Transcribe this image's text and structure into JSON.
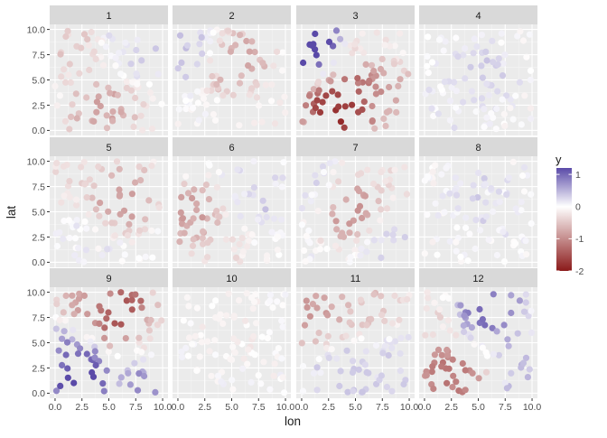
{
  "chart_data": {
    "type": "scatter",
    "facet": "month",
    "panels": [
      "1",
      "2",
      "3",
      "4",
      "5",
      "6",
      "7",
      "8",
      "9",
      "10",
      "11",
      "12"
    ],
    "xlabel": "lon",
    "ylabel": "lat",
    "xlim": [
      0,
      10
    ],
    "ylim": [
      0,
      10
    ],
    "xticks": [
      0,
      2.5,
      5,
      7.5,
      10
    ],
    "xtick_labels": [
      "0.0",
      "2.5",
      "5.0",
      "7.5",
      "10.0"
    ],
    "yticks": [
      0,
      2.5,
      5,
      7.5,
      10
    ],
    "ytick_labels": [
      "0.0",
      "2.5",
      "5.0",
      "7.5",
      "10.0"
    ],
    "legend": {
      "title": "y",
      "position": "right",
      "range": [
        -2,
        1.2
      ],
      "ticks": [
        1,
        0,
        -1,
        -2
      ],
      "tick_labels": [
        "1",
        "0",
        "-1",
        "-2"
      ],
      "colors": {
        "low": "#8b1a1a",
        "mid": "#ffffff",
        "high": "#5a4aa8"
      }
    },
    "points_per_panel": 100,
    "panel_fields": {
      "1": [
        [
          0.9,
          8.3,
          -0.55
        ],
        [
          4.5,
          2.0,
          -0.9
        ],
        [
          8.0,
          8.0,
          0.3
        ]
      ],
      "2": [
        [
          0.7,
          8.0,
          0.5
        ],
        [
          5.5,
          6.8,
          -0.9
        ],
        [
          9.0,
          2.0,
          -0.2
        ]
      ],
      "3": [
        [
          0.8,
          8.2,
          1.6
        ],
        [
          3.5,
          2.0,
          -2.1
        ],
        [
          5.5,
          4.8,
          -1.5
        ],
        [
          8.5,
          3.5,
          -0.8
        ],
        [
          6.5,
          8.2,
          -0.1
        ]
      ],
      "4": [
        [
          5.0,
          5.5,
          0.35
        ],
        [
          1.5,
          1.5,
          0.1
        ]
      ],
      "5": [
        [
          6.0,
          6.5,
          -1.0
        ],
        [
          0.5,
          8.5,
          -0.3
        ],
        [
          2.5,
          1.5,
          0.1
        ]
      ],
      "6": [
        [
          1.5,
          4.5,
          -1.0
        ],
        [
          7.0,
          6.0,
          0.3
        ],
        [
          4.0,
          1.5,
          -0.3
        ]
      ],
      "7": [
        [
          4.5,
          5.5,
          -1.1
        ],
        [
          1.0,
          7.5,
          0.25
        ],
        [
          9.0,
          2.0,
          0.4
        ],
        [
          8.0,
          8.5,
          -0.3
        ]
      ],
      "8": [
        [
          5.0,
          6.0,
          0.25
        ],
        [
          2.0,
          2.0,
          0.0
        ]
      ],
      "9": [
        [
          2.0,
          2.0,
          1.5
        ],
        [
          0.5,
          4.5,
          0.8
        ],
        [
          6.0,
          7.5,
          -1.9
        ],
        [
          3.0,
          8.5,
          -0.9
        ],
        [
          9.0,
          1.5,
          0.9
        ],
        [
          8.5,
          5.0,
          -0.2
        ]
      ],
      "10": [
        [
          5.0,
          6.0,
          -0.15
        ],
        [
          2.0,
          2.0,
          0.0
        ]
      ],
      "11": [
        [
          1.0,
          8.0,
          -1.0
        ],
        [
          6.0,
          8.5,
          -0.6
        ],
        [
          4.5,
          1.5,
          0.4
        ],
        [
          8.5,
          2.5,
          0.4
        ]
      ],
      "12": [
        [
          5.5,
          8.5,
          1.2
        ],
        [
          2.5,
          2.0,
          -1.4
        ],
        [
          0.5,
          7.5,
          -0.4
        ],
        [
          9.0,
          3.0,
          0.5
        ]
      ]
    }
  }
}
